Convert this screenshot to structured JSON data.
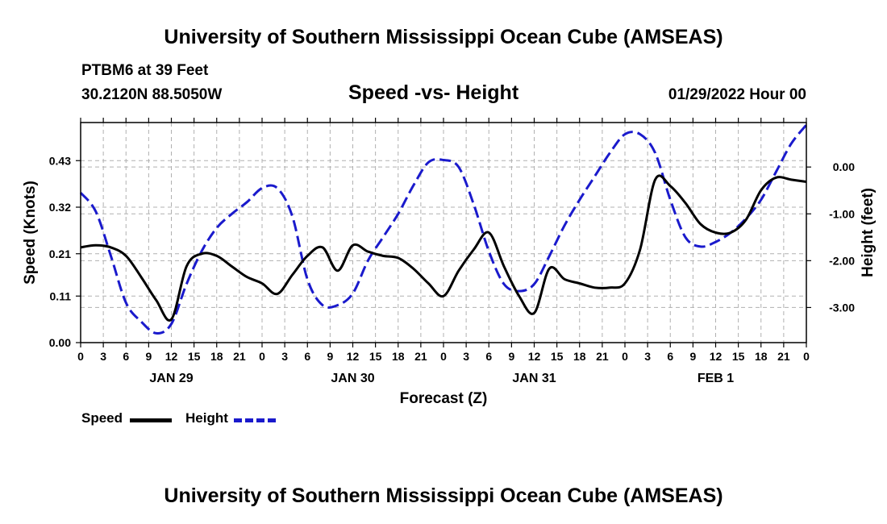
{
  "header": {
    "title": "University of Southern Mississippi Ocean Cube (AMSEAS)",
    "station": "PTBM6 at 39 Feet",
    "coords": "30.2120N  88.5050W",
    "chart_title": "Speed -vs- Height",
    "datetime": "01/29/2022 Hour 00",
    "footer_title": "University of Southern Mississippi Ocean Cube (AMSEAS)"
  },
  "colors": {
    "speed": "#000000",
    "height": "#1a1acc",
    "grid": "#b0b0b0"
  },
  "legend": {
    "speed": "Speed",
    "height": "Height"
  },
  "chart_data": {
    "type": "line",
    "title": "Speed -vs- Height",
    "xlabel": "Forecast (Z)",
    "ylabel_left": "Speed (Knots)",
    "ylabel_right": "Height (feet)",
    "xlim": [
      0,
      96
    ],
    "ylim_left": [
      0,
      0.52
    ],
    "ylim_right": [
      -3.75,
      0.95
    ],
    "x_ticks": [
      "0",
      "3",
      "6",
      "9",
      "12",
      "15",
      "18",
      "21",
      "0",
      "3",
      "6",
      "9",
      "12",
      "15",
      "18",
      "21",
      "0",
      "3",
      "6",
      "9",
      "12",
      "15",
      "18",
      "21",
      "0",
      "3",
      "6",
      "9",
      "12",
      "15",
      "18",
      "21",
      "0"
    ],
    "y_ticks_left": [
      "0.00",
      "0.11",
      "0.21",
      "0.32",
      "0.43"
    ],
    "y_ticks_right": [
      "0.00",
      "-1.00",
      "-2.00",
      "-3.00"
    ],
    "day_labels": [
      "JAN 29",
      "JAN 30",
      "JAN 31",
      "FEB 1"
    ],
    "series": [
      {
        "name": "Speed",
        "x": [
          0,
          2,
          4,
          6,
          8,
          10,
          12,
          14,
          16,
          18,
          20,
          22,
          24,
          26,
          28,
          30,
          32,
          34,
          36,
          38,
          40,
          42,
          44,
          46,
          48,
          50,
          52,
          54,
          56,
          58,
          60,
          62,
          64,
          66,
          68,
          70,
          72,
          74,
          76,
          78,
          80,
          82,
          84,
          86,
          88,
          90,
          92,
          94,
          96
        ],
        "values": [
          0.225,
          0.23,
          0.225,
          0.205,
          0.155,
          0.1,
          0.055,
          0.18,
          0.21,
          0.205,
          0.18,
          0.155,
          0.14,
          0.115,
          0.16,
          0.205,
          0.225,
          0.17,
          0.23,
          0.215,
          0.205,
          0.2,
          0.175,
          0.14,
          0.11,
          0.17,
          0.22,
          0.26,
          0.18,
          0.11,
          0.07,
          0.175,
          0.15,
          0.14,
          0.13,
          0.13,
          0.14,
          0.22,
          0.385,
          0.37,
          0.33,
          0.28,
          0.26,
          0.26,
          0.29,
          0.36,
          0.39,
          0.385,
          0.38
        ]
      },
      {
        "name": "Height",
        "x": [
          0,
          2,
          4,
          6,
          8,
          10,
          12,
          14,
          16,
          18,
          20,
          22,
          24,
          26,
          28,
          30,
          32,
          34,
          36,
          38,
          40,
          42,
          44,
          46,
          48,
          50,
          52,
          54,
          56,
          58,
          60,
          62,
          64,
          66,
          68,
          70,
          72,
          74,
          76,
          78,
          80,
          82,
          84,
          86,
          88,
          90,
          92,
          94,
          96
        ],
        "values": [
          -0.55,
          -0.95,
          -1.9,
          -2.9,
          -3.3,
          -3.55,
          -3.35,
          -2.5,
          -1.8,
          -1.3,
          -1.0,
          -0.75,
          -0.45,
          -0.45,
          -1.05,
          -2.4,
          -2.95,
          -2.95,
          -2.7,
          -2.0,
          -1.5,
          -1.0,
          -0.4,
          0.1,
          0.15,
          0.0,
          -0.8,
          -1.8,
          -2.5,
          -2.65,
          -2.5,
          -1.9,
          -1.25,
          -0.7,
          -0.2,
          0.3,
          0.7,
          0.7,
          0.3,
          -0.7,
          -1.5,
          -1.7,
          -1.6,
          -1.4,
          -1.1,
          -0.7,
          -0.1,
          0.5,
          0.9
        ]
      }
    ]
  }
}
